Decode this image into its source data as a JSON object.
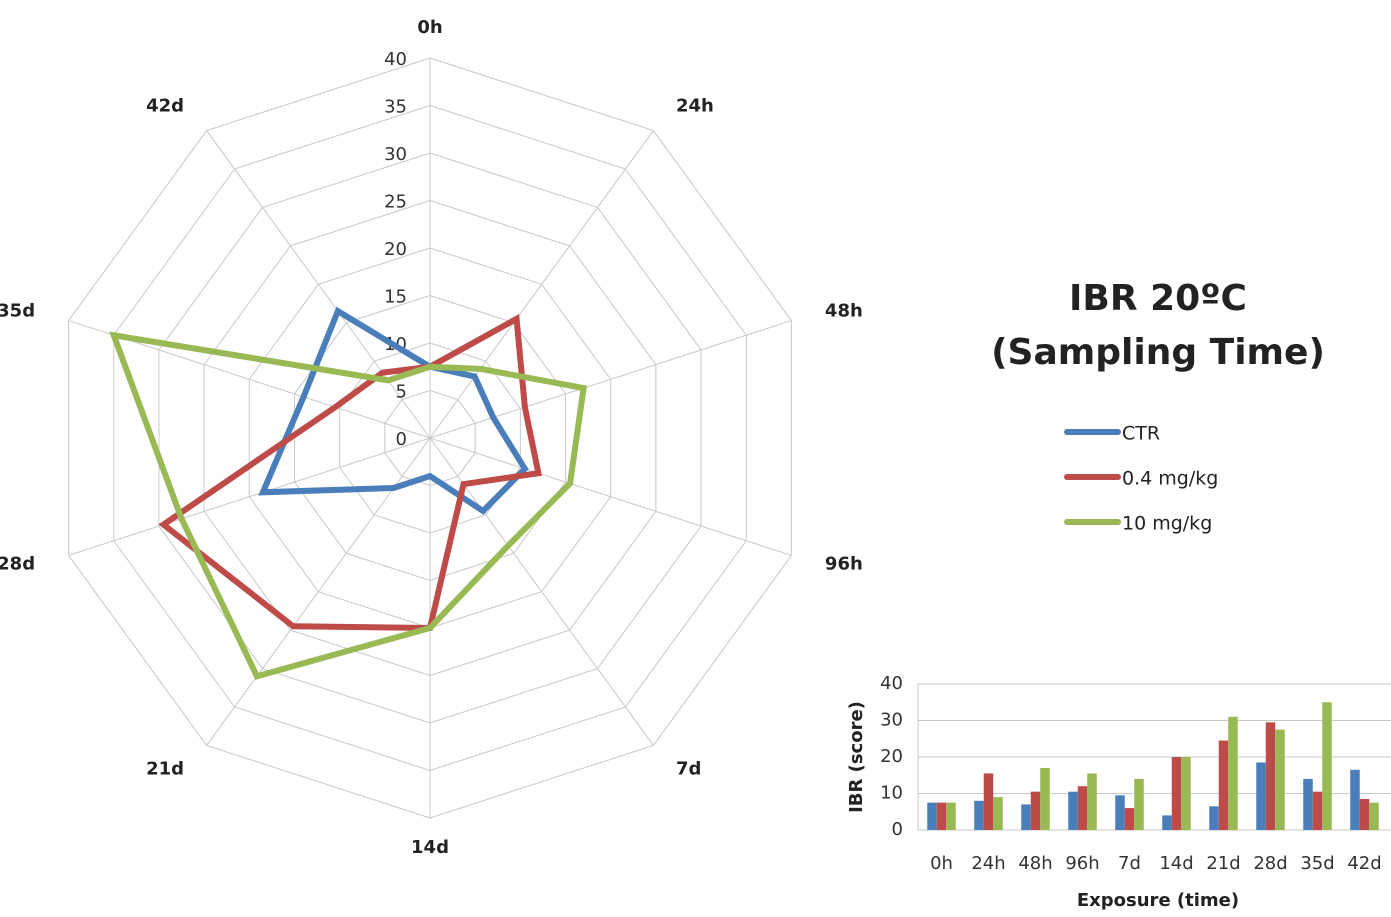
{
  "chart_data": [
    {
      "type": "radar",
      "title": [
        "IBR  20ºC",
        "(Sampling Time)"
      ],
      "categories": [
        "0h",
        "24h",
        "48h",
        "96h",
        "7d",
        "14d",
        "21d",
        "28d",
        "35d",
        "42d"
      ],
      "series": [
        {
          "name": "CTR",
          "color": "#4a7ebb",
          "values": [
            7.5,
            8,
            7,
            10.5,
            9.5,
            4,
            6.5,
            18.5,
            14,
            16.5
          ]
        },
        {
          "name": "0.4 mg/kg",
          "color": "#be4b48",
          "values": [
            7.5,
            15.5,
            10.5,
            12,
            6,
            20,
            24.5,
            29.5,
            10.5,
            8.5
          ]
        },
        {
          "name": "10 mg/kg",
          "color": "#98b954",
          "values": [
            7.5,
            9,
            17,
            15.5,
            14,
            20,
            31,
            27.5,
            35,
            7.5
          ]
        }
      ],
      "rlim": [
        0,
        40
      ],
      "rticks": [
        0,
        5,
        10,
        15,
        20,
        25,
        30,
        35,
        40
      ],
      "grid": true
    },
    {
      "type": "bar",
      "xlabel": "Exposure (time)",
      "ylabel": "IBR (score)",
      "categories": [
        "0h",
        "24h",
        "48h",
        "96h",
        "7d",
        "14d",
        "21d",
        "28d",
        "35d",
        "42d"
      ],
      "series": [
        {
          "color": "#4a7ebb",
          "values": [
            7.5,
            8,
            7,
            10.5,
            9.5,
            4,
            6.5,
            18.5,
            14,
            16.5
          ]
        },
        {
          "color": "#be4b48",
          "values": [
            7.5,
            15.5,
            10.5,
            12,
            6,
            20,
            24.5,
            29.5,
            10.5,
            8.5
          ]
        },
        {
          "color": "#98b954",
          "values": [
            7.5,
            9,
            17,
            15.5,
            14,
            20,
            31,
            27.5,
            35,
            7.5
          ]
        }
      ],
      "ylim": [
        0,
        40
      ],
      "yticks": [
        0,
        10,
        20,
        30,
        40
      ],
      "grid": true
    }
  ]
}
